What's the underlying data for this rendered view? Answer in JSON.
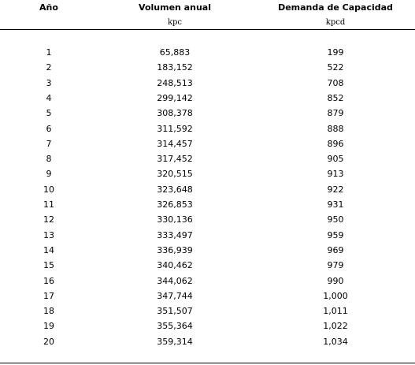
{
  "table": {
    "columns": [
      {
        "header": "Año"
      },
      {
        "header": "Volumen anual",
        "unit": "kpc"
      },
      {
        "header": "Demanda de Capacidad",
        "unit": "kpcd"
      }
    ],
    "rows": [
      [
        "1",
        "65,883",
        "199"
      ],
      [
        "2",
        "183,152",
        "522"
      ],
      [
        "3",
        "248,513",
        "708"
      ],
      [
        "4",
        "299,142",
        "852"
      ],
      [
        "5",
        "308,378",
        "879"
      ],
      [
        "6",
        "311,592",
        "888"
      ],
      [
        "7",
        "314,457",
        "896"
      ],
      [
        "8",
        "317,452",
        "905"
      ],
      [
        "9",
        "320,515",
        "913"
      ],
      [
        "10",
        "323,648",
        "922"
      ],
      [
        "11",
        "326,853",
        "931"
      ],
      [
        "12",
        "330,136",
        "950"
      ],
      [
        "13",
        "333,497",
        "959"
      ],
      [
        "14",
        "336,939",
        "969"
      ],
      [
        "15",
        "340,462",
        "979"
      ],
      [
        "16",
        "344,062",
        "990"
      ],
      [
        "17",
        "347,744",
        "1,000"
      ],
      [
        "18",
        "351,507",
        "1,011"
      ],
      [
        "19",
        "355,364",
        "1,022"
      ],
      [
        "20",
        "359,314",
        "1,034"
      ]
    ]
  }
}
